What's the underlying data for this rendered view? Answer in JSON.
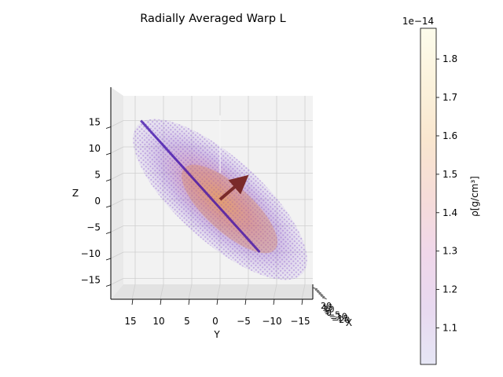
{
  "chart_data": {
    "type": "scatter",
    "projection": "3d",
    "title": "Radially Averaged Warp L",
    "xlabel": "X",
    "ylabel": "Y",
    "zlabel": "Z",
    "y_ticks": [
      "15",
      "10",
      "5",
      "0",
      "−5",
      "−10",
      "−15"
    ],
    "y_tick_values": [
      15,
      10,
      5,
      0,
      -5,
      -10,
      -15
    ],
    "z_ticks": [
      "15",
      "10",
      "5",
      "0",
      "−5",
      "−10",
      "−15"
    ],
    "z_tick_values": [
      15,
      10,
      5,
      0,
      -5,
      -10,
      -15
    ],
    "x_ticks": [
      "20",
      "15",
      "10",
      "5",
      "0",
      "−5",
      "−10",
      "−15",
      "−20"
    ],
    "x_ticks_note": "X-axis ticks are viewed edge-on and overlap each other",
    "ylim": [
      19,
      -19
    ],
    "zlim": [
      -19,
      19
    ],
    "grid": true,
    "view": "looking along the X axis (elevation ≈ 0, azimuth ≈ 0)",
    "disk": {
      "description": "warped gas disk rendered as semi-transparent points coloured by density",
      "center": [
        0,
        0,
        0
      ],
      "tilt_deg": 42,
      "major_radius": 20,
      "inner_warp_line": {
        "from_yz": [
          14,
          15
        ],
        "to_yz": [
          -7,
          -10
        ]
      }
    },
    "vector": {
      "description": "angular momentum arrow drawn from the origin",
      "from_yz": [
        0,
        0
      ],
      "to_yz": [
        -3.8,
        3.5
      ],
      "color": "#7a2a2a"
    },
    "colorbar": {
      "label": "ρ[g/cm³]",
      "offset_text": "1e−14",
      "ticks": [
        "1.1",
        "1.2",
        "1.3",
        "1.4",
        "1.5",
        "1.6",
        "1.7",
        "1.8"
      ],
      "tick_values": [
        1.1,
        1.2,
        1.3,
        1.4,
        1.5,
        1.6,
        1.7,
        1.8
      ],
      "vmin": 1.005,
      "vmax": 1.88,
      "colormap": "plasma (semi-transparent)",
      "stops": [
        "#e6e6f5",
        "#e8d9f0",
        "#f0d7ea",
        "#f6dcd8",
        "#f9e6cf",
        "#fbf2dc",
        "#fdfcec"
      ]
    }
  }
}
